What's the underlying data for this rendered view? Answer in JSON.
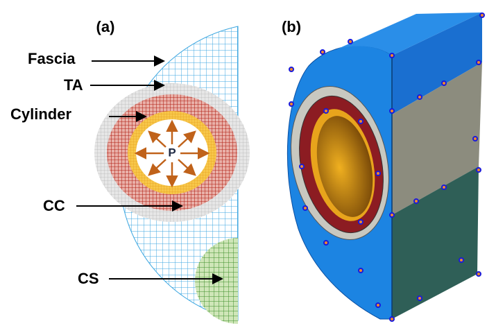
{
  "panels": [
    {
      "label": "(a)",
      "regions": [
        "Fascia",
        "TA",
        "Cylinder",
        "CC",
        "CS"
      ],
      "pressure": "P"
    },
    {
      "label": "(b)"
    }
  ]
}
